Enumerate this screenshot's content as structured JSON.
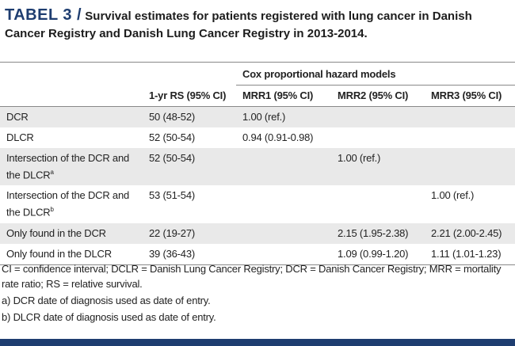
{
  "title": {
    "label": "TABEL 3 /",
    "text": "Survival estimates for patients registered with lung cancer in Danish Cancer Registry and Danish Lung Cancer Registry in 2013-2014."
  },
  "table": {
    "group_header": "Cox proportional hazard models",
    "columns": [
      "1-yr RS (95% CI)",
      "MRR1 (95% CI)",
      "MRR2 (95% CI)",
      "MRR3 (95% CI)"
    ],
    "rows": [
      {
        "label": "DCR",
        "cells": [
          "50 (48-52)",
          "1.00 (ref.)",
          null,
          null
        ]
      },
      {
        "label": "DLCR",
        "cells": [
          "52 (50-54)",
          "0.94 (0.91-0.98)",
          null,
          null
        ]
      },
      {
        "label": "Intersection of the DCR and the DLCR",
        "sup": "a",
        "cells": [
          "52 (50-54)",
          null,
          "1.00 (ref.)",
          null
        ]
      },
      {
        "label": "Intersection of the DCR and the DLCR",
        "sup": "b",
        "cells": [
          "53 (51-54)",
          null,
          null,
          "1.00 (ref.)"
        ]
      },
      {
        "label": "Only found in the DCR",
        "cells": [
          "22 (19-27)",
          null,
          "2.15 (1.95-2.38)",
          "2.21 (2.00-2.45)"
        ]
      },
      {
        "label": "Only found in the DLCR",
        "cells": [
          "39 (36-43)",
          null,
          "1.09 (0.99-1.20)",
          "1.11 (1.01-1.23)"
        ]
      }
    ]
  },
  "footnotes": [
    "CI = confidence interval; DCLR = Danish Lung Cancer Registry; DCR = Danish Cancer Registry; MRR = mortality rate ratio; RS = relative survival.",
    "a) DCR date of diagnosis used as date of entry.",
    "b) DLCR date of diagnosis used as date of entry."
  ]
}
